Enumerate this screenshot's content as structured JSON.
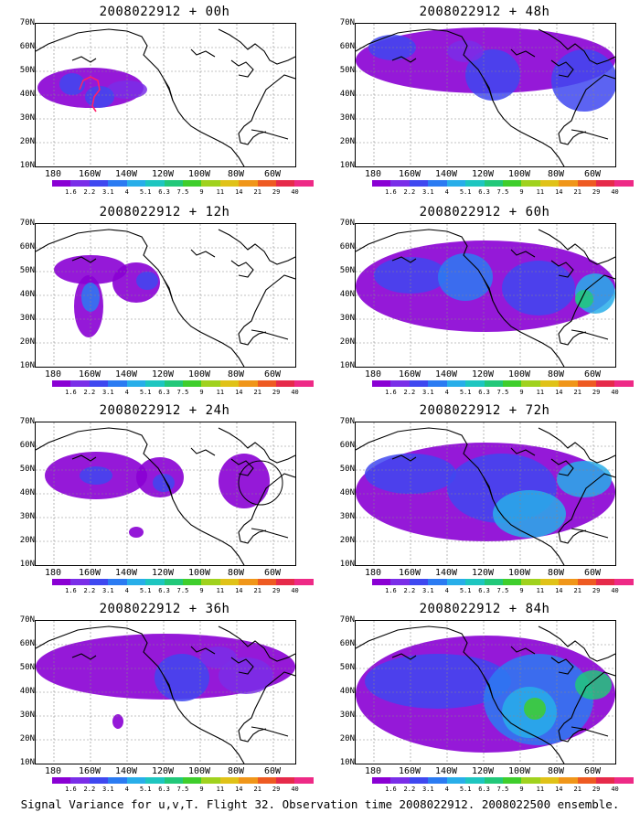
{
  "caption": "Signal Variance for u,v,T. Flight 32. Observation time 2008022912. 2008022500 ensemble.",
  "lat_labels": [
    "70N",
    "60N",
    "50N",
    "40N",
    "30N",
    "20N",
    "10N"
  ],
  "lon_labels": [
    "180",
    "160W",
    "140W",
    "120W",
    "100W",
    "80W",
    "60W"
  ],
  "colorbar": {
    "labels": [
      "1.6",
      "2.2",
      "3.1",
      "4",
      "5.1",
      "6.3",
      "7.5",
      "9",
      "11",
      "14",
      "21",
      "29",
      "40"
    ],
    "colors": [
      "#8a00d4",
      "#7a2ee8",
      "#3f48f0",
      "#2b7bf2",
      "#28aee9",
      "#1ec6c0",
      "#22c87a",
      "#3fce2c",
      "#a0d21e",
      "#e0c218",
      "#f09619",
      "#ee5a22",
      "#e62a4a",
      "#ee2a86"
    ]
  },
  "panels": [
    {
      "title": "2008022912 + 00h"
    },
    {
      "title": "2008022912 + 48h"
    },
    {
      "title": "2008022912 + 12h"
    },
    {
      "title": "2008022912 + 60h"
    },
    {
      "title": "2008022912 + 24h"
    },
    {
      "title": "2008022912 + 72h"
    },
    {
      "title": "2008022912 + 36h"
    },
    {
      "title": "2008022912 + 84h"
    }
  ]
}
